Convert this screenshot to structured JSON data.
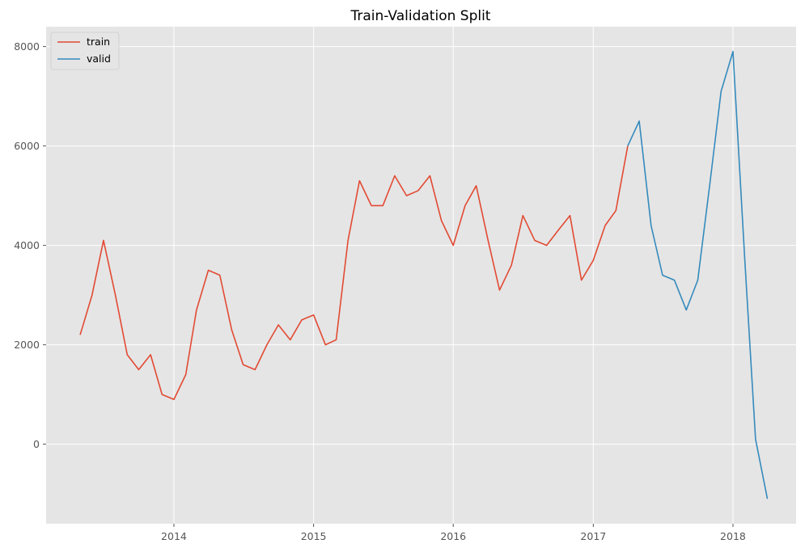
{
  "chart_data": {
    "type": "line",
    "title": "Train-Validation Split",
    "xlabel": "",
    "ylabel": "",
    "style": "ggplot",
    "grid": true,
    "legend_position": "top-left",
    "xlim": [
      "2013-02-01",
      "2018-06-15"
    ],
    "ylim": [
      -1600,
      8400
    ],
    "x_ticks": [
      "2014-01-01",
      "2015-01-01",
      "2016-01-01",
      "2017-01-01",
      "2018-01-01"
    ],
    "x_tick_labels": [
      "2014",
      "2015",
      "2016",
      "2017",
      "2018"
    ],
    "y_ticks": [
      0,
      2000,
      4000,
      6000,
      8000
    ],
    "y_tick_labels": [
      "0",
      "2000",
      "4000",
      "6000",
      "8000"
    ],
    "series": [
      {
        "name": "train",
        "color": "#E24A33",
        "x": [
          "2013-05-01",
          "2013-06-01",
          "2013-07-01",
          "2013-08-01",
          "2013-09-01",
          "2013-10-01",
          "2013-11-01",
          "2013-12-01",
          "2014-01-01",
          "2014-02-01",
          "2014-03-01",
          "2014-04-01",
          "2014-05-01",
          "2014-06-01",
          "2014-07-01",
          "2014-08-01",
          "2014-09-01",
          "2014-10-01",
          "2014-11-01",
          "2014-12-01",
          "2015-01-01",
          "2015-02-01",
          "2015-03-01",
          "2015-04-01",
          "2015-05-01",
          "2015-06-01",
          "2015-07-01",
          "2015-08-01",
          "2015-09-01",
          "2015-10-01",
          "2015-11-01",
          "2015-12-01",
          "2016-01-01",
          "2016-02-01",
          "2016-03-01",
          "2016-04-01",
          "2016-05-01",
          "2016-06-01",
          "2016-07-01",
          "2016-08-01",
          "2016-09-01",
          "2016-10-01",
          "2016-11-01",
          "2016-12-01",
          "2017-01-01",
          "2017-02-01",
          "2017-03-01",
          "2017-04-01"
        ],
        "y": [
          2200,
          3000,
          4100,
          3000,
          1800,
          1500,
          1800,
          1000,
          900,
          1400,
          2700,
          3500,
          3400,
          2300,
          1600,
          1500,
          2000,
          2400,
          2100,
          2500,
          2600,
          2000,
          2100,
          4100,
          5300,
          4800,
          4800,
          5400,
          5000,
          5100,
          5400,
          4500,
          4000,
          4800,
          5200,
          4100,
          3100,
          3600,
          4600,
          4100,
          4000,
          4300,
          4600,
          3300,
          3700,
          4400,
          4700,
          6000
        ]
      },
      {
        "name": "valid",
        "color": "#348ABD",
        "x": [
          "2017-04-01",
          "2017-05-01",
          "2017-06-01",
          "2017-07-01",
          "2017-08-01",
          "2017-09-01",
          "2017-10-01",
          "2017-11-01",
          "2017-12-01",
          "2018-01-01",
          "2018-02-01",
          "2018-03-01",
          "2018-04-01"
        ],
        "y": [
          6000,
          6500,
          4400,
          3400,
          3300,
          2700,
          3300,
          5200,
          7100,
          7900,
          3700,
          100,
          -1100
        ]
      }
    ]
  }
}
